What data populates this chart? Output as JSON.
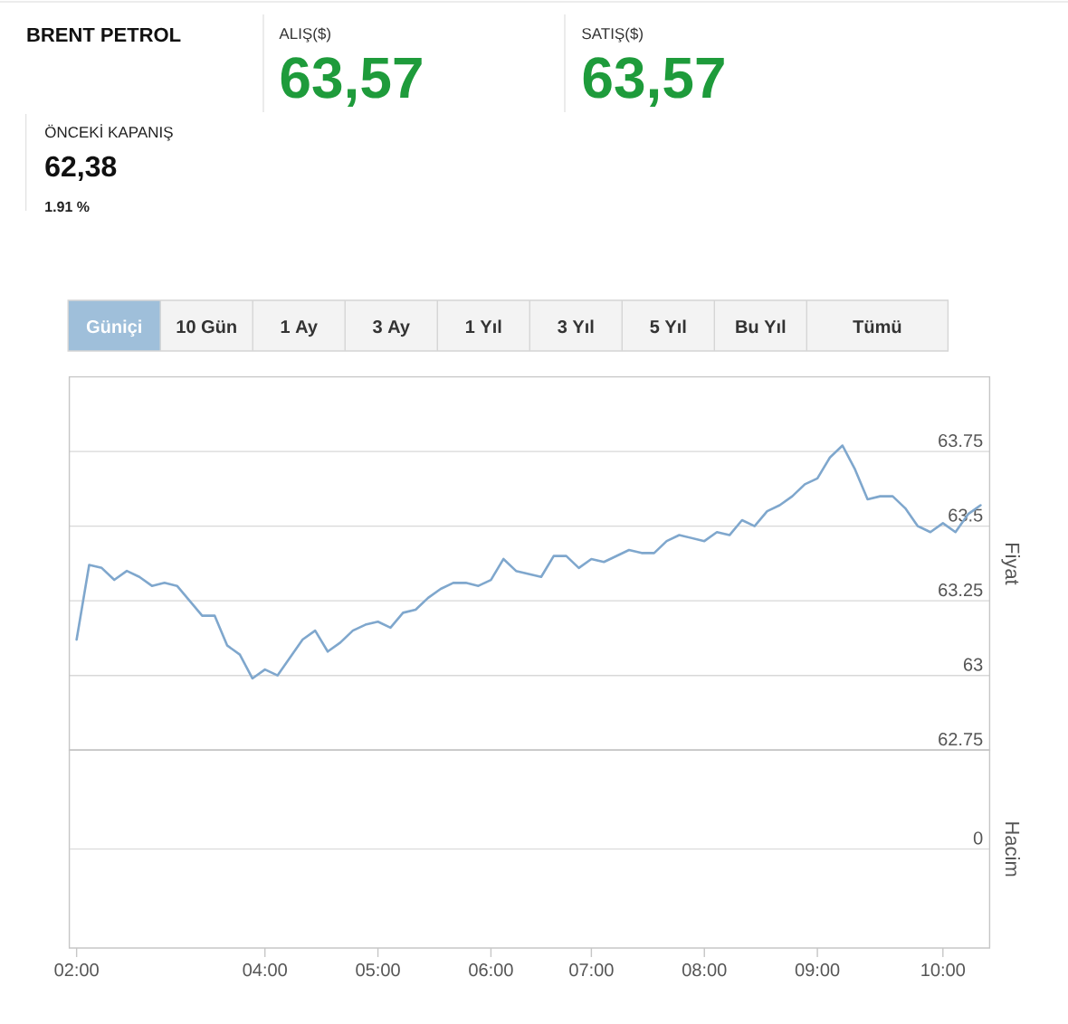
{
  "chart_data": [
    {
      "type": "other",
      "title": "BRENT PETROL",
      "annotations": [
        "ALIŞ($)",
        "63,57",
        "SATIŞ($)",
        "63,57",
        "ÖNCEKİ KAPANIŞ",
        "62,38",
        "1.91 %"
      ]
    },
    {
      "type": "other",
      "annotations": [
        "Güniçi",
        "10 Gün",
        "1 Ay",
        "3 Ay",
        "1 Yıl",
        "3 Yıl",
        "5 Yıl",
        "Bu Yıl",
        "Tümü"
      ]
    },
    {
      "type": "line",
      "categories": [
        null,
        null,
        null,
        null,
        null,
        null,
        null,
        null,
        null,
        null,
        null,
        null,
        null,
        null,
        null,
        null,
        null,
        null,
        null,
        null,
        null,
        null,
        null,
        null,
        null,
        null,
        null,
        null,
        null,
        null,
        null,
        null,
        null,
        null,
        null,
        null,
        null,
        null,
        null,
        null,
        null,
        null,
        null,
        null,
        null,
        null,
        null,
        null,
        null,
        null,
        null,
        null,
        null,
        null,
        null,
        null,
        null,
        null,
        null,
        null,
        null,
        null,
        null,
        null,
        null,
        null,
        null,
        null,
        null,
        null,
        null,
        null,
        null
      ],
      "series": [
        {
          "color": "#7fa7cd",
          "values": [
            63.12,
            63.37,
            63.36,
            63.32,
            63.35,
            63.33,
            63.3,
            63.31,
            63.3,
            63.25,
            63.2,
            63.2,
            63.1,
            63.07,
            62.99,
            63.02,
            63.0,
            63.06,
            63.12,
            63.15,
            63.08,
            63.11,
            63.15,
            63.17,
            63.18,
            63.16,
            63.21,
            63.22,
            63.26,
            63.29,
            63.31,
            63.31,
            63.3,
            63.32,
            63.39,
            63.35,
            63.34,
            63.33,
            63.4,
            63.4,
            63.36,
            63.39,
            63.38,
            63.4,
            63.42,
            63.41,
            63.41,
            63.45,
            63.47,
            63.46,
            63.45,
            63.48,
            63.47,
            63.52,
            63.5,
            63.55,
            63.57,
            63.6,
            63.64,
            63.66,
            63.73,
            63.77,
            63.69,
            63.59,
            63.6,
            63.6,
            63.56,
            63.5,
            63.48,
            63.51,
            63.48,
            63.54,
            63.57
          ]
        }
      ],
      "ylim": [
        62.75,
        64
      ],
      "yticks": [
        62.75,
        63,
        63.25,
        63.5,
        63.75
      ],
      "ylabel": "Fiyat",
      "grid": "y"
    },
    {
      "type": "other",
      "categories": [
        "02:00",
        null,
        null,
        null,
        null,
        null,
        null,
        null,
        null,
        null,
        null,
        null,
        null,
        null,
        null,
        "04:00",
        null,
        null,
        null,
        null,
        null,
        null,
        null,
        null,
        "05:00",
        null,
        null,
        null,
        null,
        null,
        null,
        null,
        null,
        "06:00",
        null,
        null,
        null,
        null,
        null,
        null,
        null,
        "07:00",
        null,
        null,
        null,
        null,
        null,
        null,
        null,
        null,
        "08:00",
        null,
        null,
        null,
        null,
        null,
        null,
        null,
        null,
        "09:00",
        null,
        null,
        null,
        null,
        null,
        null,
        null,
        null,
        null,
        "10:00",
        null,
        null,
        null
      ],
      "ylabel": "Hacim",
      "annotations": [
        "0"
      ]
    }
  ]
}
